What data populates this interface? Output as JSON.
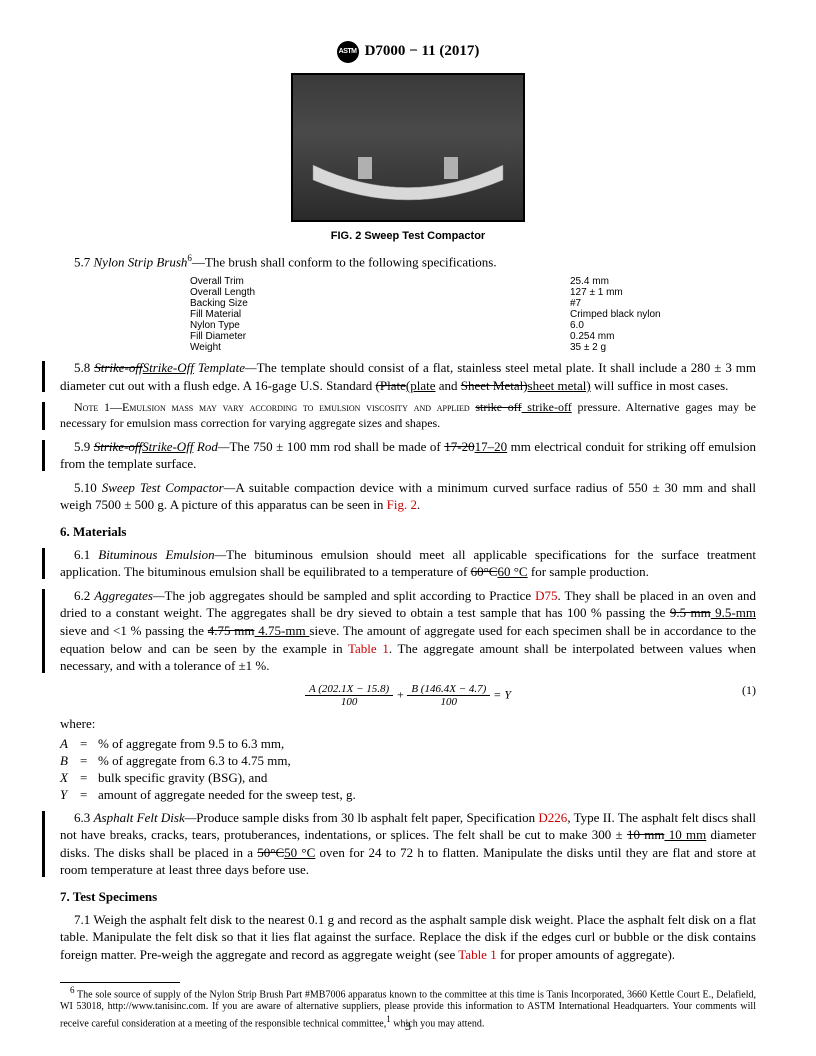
{
  "header": {
    "standard": "D7000 − 11 (2017)",
    "logo_text": "ASTM"
  },
  "figure": {
    "caption": "FIG. 2 Sweep Test Compactor"
  },
  "spec_rows": [
    {
      "label": "Overall Trim",
      "value": "25.4 mm"
    },
    {
      "label": "Overall Length",
      "value": "127 ± 1 mm"
    },
    {
      "label": "Backing Size",
      "value": "#7"
    },
    {
      "label": "Fill Material",
      "value": "Crimped black nylon"
    },
    {
      "label": "Nylon Type",
      "value": "6.0"
    },
    {
      "label": "Fill Diameter",
      "value": "0.254 mm"
    },
    {
      "label": "Weight",
      "value": "35 ± 2 g"
    }
  ],
  "s57_lead": "5.7 ",
  "s57_title": "Nylon Strip Brush",
  "s57_sup": "6",
  "s57_tail": "—The brush shall conform to the following specifications.",
  "s58_lead": "5.8 ",
  "s58_strike1": "Strike-off",
  "s58_under1": "Strike-Off",
  "s58_a": " Template—",
  "s58_b": "The template should consist of a flat, stainless steel metal plate. It shall include a 280 ± 3 mm diameter cut out with a flush edge. A 16-gage U.S. Standard ",
  "s58_strike2": "(Plate",
  "s58_under2": "(plate",
  "s58_c": " and ",
  "s58_strike3": "Sheet Metal)",
  "s58_under3": "sheet metal)",
  "s58_d": " will suffice in most cases.",
  "note1_a": "Note 1—Emulsion mass may vary according to emulsion viscosity and applied ",
  "note1_strike": "strike off",
  "note1_under": " strike-off",
  "note1_b": " pressure. Alternative gages may be necessary for emulsion mass correction for varying aggregate sizes and shapes.",
  "s59_lead": "5.9 ",
  "s59_strike1": "Strike-off",
  "s59_under1": "Strike-Off",
  "s59_a": " Rod—",
  "s59_b": "The 750 ± 100 mm rod shall be made of ",
  "s59_strike2": "17-20",
  "s59_under2": "17–20",
  "s59_c": " mm electrical conduit for striking off emulsion from the template surface.",
  "s510_lead": "5.10 ",
  "s510_title": "Sweep Test Compactor—",
  "s510_body_a": "A suitable compaction device with a minimum curved surface radius of 550 ± 30 mm and shall weigh 7500 ± 500 g. A picture of this apparatus can be seen in ",
  "s510_link": "Fig. 2",
  "s510_body_b": ".",
  "sec6": "6. Materials",
  "s61_lead": "6.1 ",
  "s61_title": "Bituminous Emulsion—",
  "s61_a": "The bituminous emulsion should meet all applicable specifications for the surface treatment application. The bituminous emulsion shall be equilibrated to a temperature of ",
  "s61_strike": "60°C",
  "s61_under": "60 °C",
  "s61_b": " for sample production.",
  "s62_lead": "6.2 ",
  "s62_title": "Aggregates—",
  "s62_a": "The job aggregates should be sampled and split according to Practice ",
  "s62_link": "D75",
  "s62_b": ". They shall be placed in an oven and dried to a constant weight. The aggregates shall be dry sieved to obtain a test sample that has 100 % passing the ",
  "s62_strike1": "9.5 mm",
  "s62_under1": " 9.5-mm ",
  "s62_c": " sieve and <1 % passing the ",
  "s62_strike2": "4.75 mm",
  "s62_under2": " 4.75-mm ",
  "s62_d": " sieve. The amount of aggregate used for each specimen shall be in accordance to the equation below and can be seen by the example in ",
  "s62_link2": "Table 1",
  "s62_e": ". The aggregate amount shall be interpolated between values when necessary, and with a tolerance of ±1 %.",
  "eq_num1": "A (202.1X − 15.8)",
  "eq_den1": "100",
  "eq_plus": "+",
  "eq_num2": "B (146.4X − 4.7)",
  "eq_den2": "100",
  "eq_eq": " = Y",
  "eq_marker": "(1)",
  "where_label": "where:",
  "where": [
    {
      "sym": "A",
      "def": "% of aggregate from 9.5 to 6.3 mm,"
    },
    {
      "sym": "B",
      "def": "% of aggregate from 6.3 to 4.75 mm,"
    },
    {
      "sym": "X",
      "def": "bulk specific gravity (BSG), and"
    },
    {
      "sym": "Y",
      "def": "amount of aggregate needed for the sweep test, g."
    }
  ],
  "s63_lead": "6.3 ",
  "s63_title": "Asphalt Felt Disk—",
  "s63_a": "Produce sample disks from 30 lb asphalt felt paper, Specification ",
  "s63_link": "D226",
  "s63_b": ", Type II. The asphalt felt discs shall not have breaks, cracks, tears, protuberances, indentations, or splices. The felt shall be cut to make 300 ± ",
  "s63_strike1": "10 mm",
  "s63_under1": " 10 mm",
  "s63_c": " diameter disks. The disks shall be placed in a ",
  "s63_strike2": "50°C",
  "s63_under2": "50 °C",
  "s63_d": " oven for 24 to 72 h to flatten. Manipulate the disks until they are flat and store at room temperature at least three days before use.",
  "sec7": "7. Test Specimens",
  "s71_lead": "7.1 ",
  "s71_body_a": "Weigh the asphalt felt disk to the nearest 0.1 g and record as the asphalt sample disk weight. Place the asphalt felt disk on a flat table. Manipulate the felt disk so that it lies flat against the surface. Replace the disk if the edges curl or bubble or the disk contains foreign matter. Pre-weigh the aggregate and record as aggregate weight (see ",
  "s71_link": "Table 1",
  "s71_body_b": " for proper amounts of aggregate).",
  "footnote_sup": "6",
  "footnote_a": " The sole source of supply of the Nylon Strip Brush Part #MB7006 apparatus known to the committee at this time is Tanis Incorporated, 3660 Kettle Court E., Delafield, WI 53018, http://www.tanisinc.com. If you are aware of alternative suppliers, please provide this information to ASTM International Headquarters. Your comments will receive careful consideration at a meeting of the responsible technical committee,",
  "footnote_sup2": "1",
  "footnote_b": " which you may attend.",
  "pagenum": "3"
}
